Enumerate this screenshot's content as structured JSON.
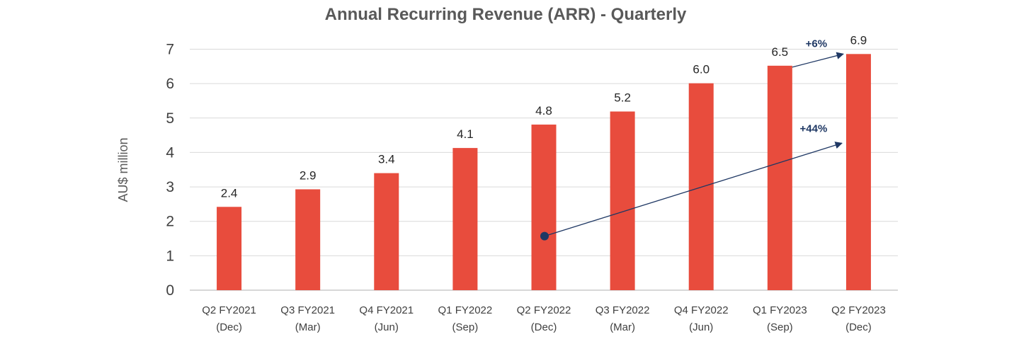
{
  "chart_data": {
    "type": "bar",
    "title": "Annual Recurring Revenue (ARR) - Quarterly",
    "ylabel": "AU$ million",
    "xlabel": "",
    "ylim": [
      0,
      7
    ],
    "yticks": [
      0,
      1,
      2,
      3,
      4,
      5,
      6,
      7
    ],
    "grid": true,
    "categories": [
      [
        "Q2 FY2021",
        "(Dec)"
      ],
      [
        "Q3 FY2021",
        "(Mar)"
      ],
      [
        "Q4 FY2021",
        "(Jun)"
      ],
      [
        "Q1 FY2022",
        "(Sep)"
      ],
      [
        "Q2 FY2022",
        "(Dec)"
      ],
      [
        "Q3 FY2022",
        "(Mar)"
      ],
      [
        "Q4 FY2022",
        "(Jun)"
      ],
      [
        "Q1 FY2023",
        "(Sep)"
      ],
      [
        "Q2 FY2023",
        "(Dec)"
      ]
    ],
    "values": [
      2.42,
      2.93,
      3.4,
      4.13,
      4.81,
      5.19,
      6.01,
      6.52,
      6.86
    ],
    "data_labels": [
      "2.4",
      "2.9",
      "3.4",
      "4.1",
      "4.8",
      "5.2",
      "6.0",
      "6.5",
      "6.9"
    ],
    "bar_color": "#e84c3d",
    "annotations": [
      {
        "text": "+6%",
        "from_category": 7,
        "to_category": 8,
        "color": "#1f3864"
      },
      {
        "text": "+44%",
        "from_category": 4,
        "to_category": 8,
        "color": "#1f3864"
      }
    ]
  }
}
